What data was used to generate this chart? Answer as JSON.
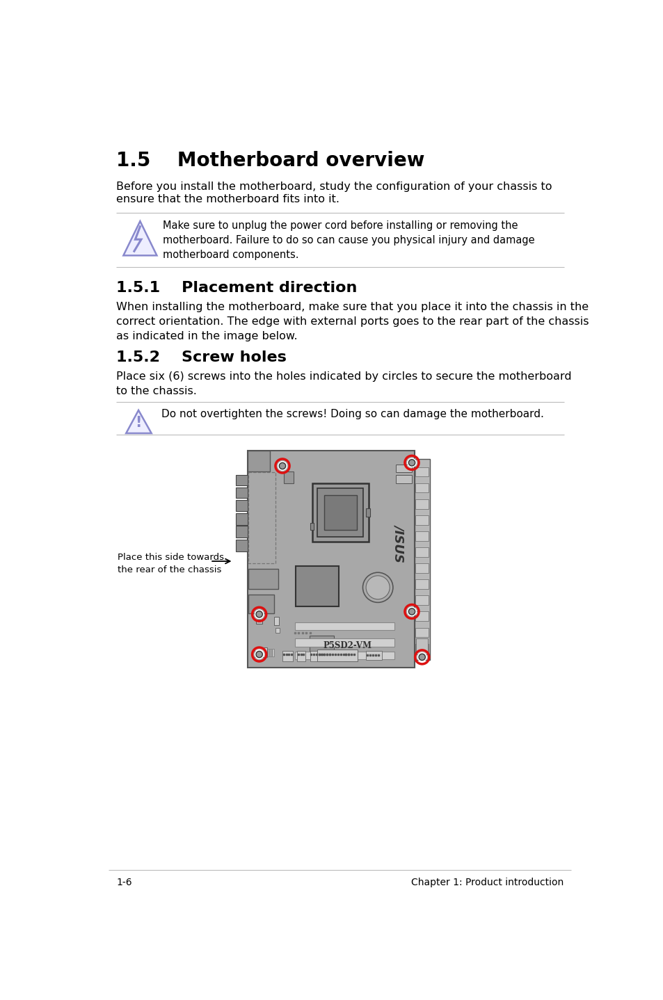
{
  "title": "1.5    Motherboard overview",
  "intro_text": "Before you install the motherboard, study the configuration of your chassis to\nensure that the motherboard fits into it.",
  "warning_text": "Make sure to unplug the power cord before installing or removing the\nmotherboard. Failure to do so can cause you physical injury and damage\nmotherboard components.",
  "section151": "1.5.1    Placement direction",
  "section151_text": "When installing the motherboard, make sure that you place it into the chassis in the\ncorrect orientation. The edge with external ports goes to the rear part of the chassis\nas indicated in the image below.",
  "section152": "1.5.2    Screw holes",
  "section152_text": "Place six (6) screws into the holes indicated by circles to secure the motherboard\nto the chassis.",
  "caution_text": "Do not overtighten the screws! Doing so can damage the motherboard.",
  "label_text": "Place this side towards\nthe rear of the chassis",
  "footer_left": "1-6",
  "footer_right": "Chapter 1: Product introduction",
  "bg_color": "#ffffff",
  "text_color": "#000000",
  "board_color": "#a8a8a8",
  "board_edge": "#555555",
  "screw_color": "#dd1111",
  "line_color": "#bbbbbb"
}
